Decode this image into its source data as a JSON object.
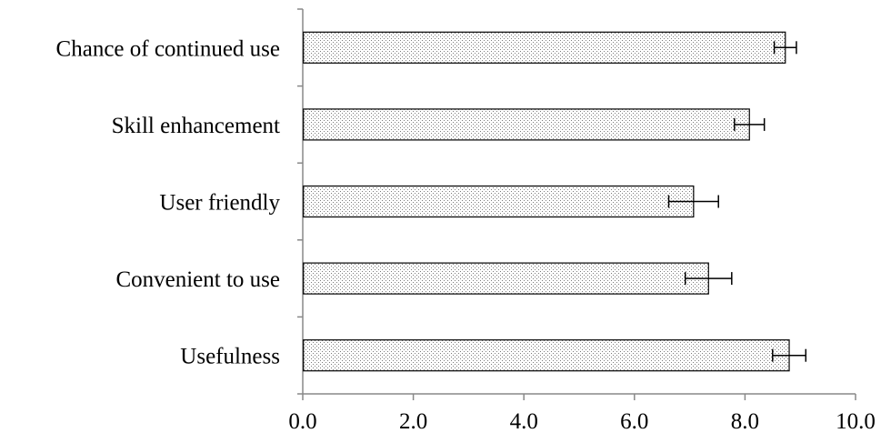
{
  "chart_data": {
    "type": "bar",
    "orientation": "horizontal",
    "categories": [
      "Chance of continued use",
      "Skill enhancement",
      "User friendly",
      "Convenient to use",
      "Usefulness"
    ],
    "values": [
      8.73,
      8.08,
      7.07,
      7.34,
      8.8
    ],
    "errors": [
      0.2,
      0.27,
      0.45,
      0.42,
      0.3
    ],
    "xlim": [
      0,
      10
    ],
    "xticks": [
      0,
      2,
      4,
      6,
      8,
      10
    ],
    "xtick_labels": [
      "0.0",
      "2.0",
      "4.0",
      "6.0",
      "8.0",
      "10.0"
    ],
    "title": "",
    "xlabel": "",
    "ylabel": "",
    "grid": false,
    "legend": "none",
    "bar_fill": "#ffffff",
    "bar_pattern_color": "#7a7a7a",
    "bar_stroke": "#000000",
    "axis_color": "#888888"
  }
}
